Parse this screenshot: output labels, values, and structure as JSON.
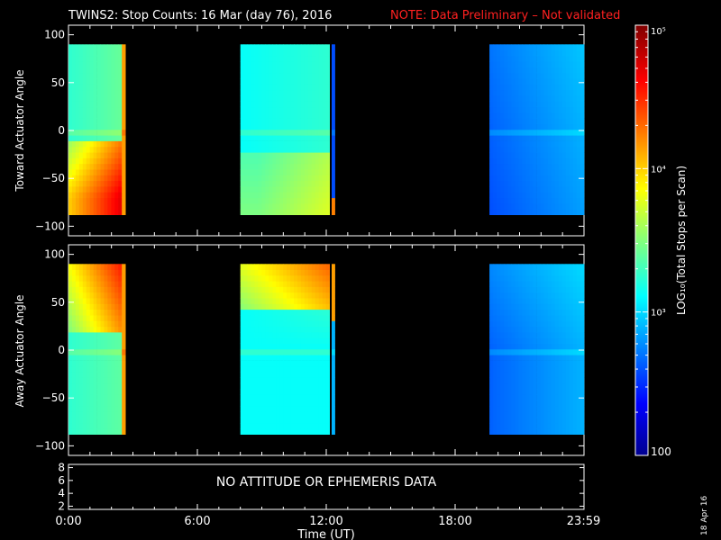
{
  "title": {
    "main": "TWINS2: Stop Counts: 16 Mar (day  76), 2016",
    "note": "NOTE: Data Preliminary – Not validated",
    "note_color": "#ff2020"
  },
  "date_stamp": "18 Apr 16",
  "message": "NO ATTITUDE OR EPHEMERIS DATA",
  "chart_data": [
    {
      "type": "heatmap",
      "panel": "top",
      "ylabel": "Toward Actuator Angle",
      "ylim": [
        -110,
        110
      ],
      "yticks": [
        "100",
        "50",
        "0",
        "−50",
        "−100"
      ],
      "yvalues": [
        100,
        50,
        0,
        -50,
        -100
      ],
      "angle_range": [
        -88,
        90
      ],
      "data_intervals_hours": [
        [
          0.0,
          2.65
        ],
        [
          8.0,
          12.15
        ],
        [
          12.25,
          12.4
        ],
        [
          19.6,
          24.0
        ]
      ]
    },
    {
      "type": "heatmap",
      "panel": "bottom",
      "ylabel": "Away Actuator Angle",
      "ylim": [
        -110,
        110
      ],
      "yticks": [
        "100",
        "50",
        "0",
        "−50",
        "−100"
      ],
      "yvalues": [
        100,
        50,
        0,
        -50,
        -100
      ],
      "angle_range": [
        -88,
        90
      ],
      "data_intervals_hours": [
        [
          0.0,
          2.65
        ],
        [
          8.0,
          12.15
        ],
        [
          12.25,
          12.4
        ],
        [
          19.6,
          24.0
        ]
      ]
    },
    {
      "type": "line",
      "panel": "ephemeris",
      "ylim": [
        1.5,
        8.5
      ],
      "yticks": [
        "8",
        "6",
        "4",
        "2"
      ],
      "yvalues": [
        8,
        6,
        4,
        2
      ]
    }
  ],
  "x_axis": {
    "label": "Time (UT)",
    "xlim_hours": [
      0,
      24
    ],
    "ticks": [
      {
        "label": "0:00",
        "hour": 0
      },
      {
        "label": "6:00",
        "hour": 6
      },
      {
        "label": "12:00",
        "hour": 12
      },
      {
        "label": "18:00",
        "hour": 18
      },
      {
        "label": "23:59",
        "hour": 23.98
      }
    ]
  },
  "colorbar": {
    "label": "LOG₁₀(Total Stops per Scan)",
    "ticks": [
      {
        "label": "100",
        "value": 100
      },
      {
        "label": "10³",
        "value": 1000
      },
      {
        "label": "10⁴",
        "value": 10000
      },
      {
        "label": "10⁵",
        "value": 100000
      }
    ],
    "range": [
      100,
      100000
    ],
    "scale": "log"
  }
}
